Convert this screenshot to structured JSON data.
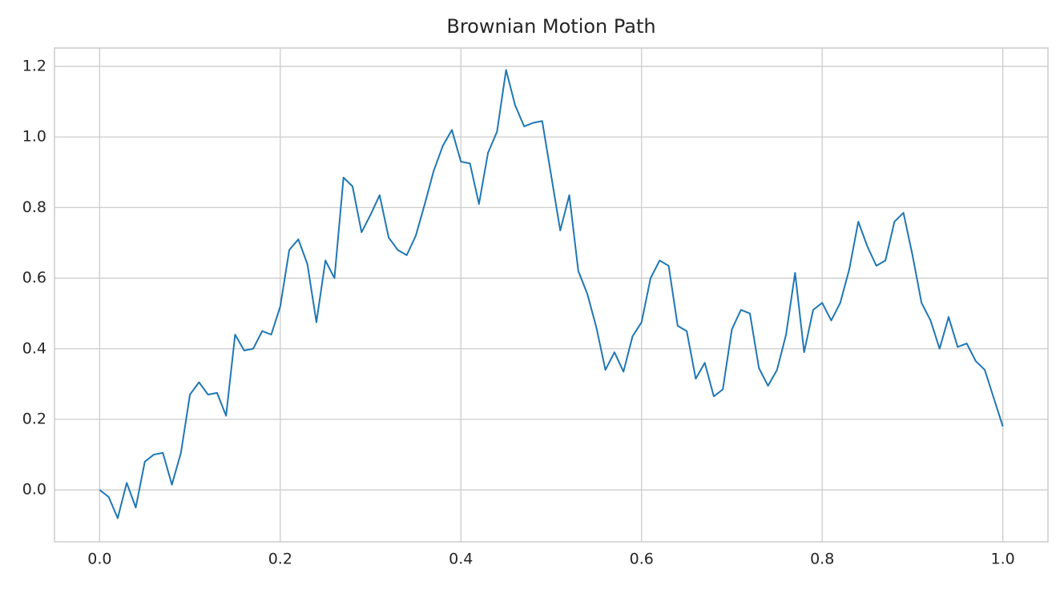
{
  "chart_data": {
    "type": "line",
    "title": "Brownian Motion Path",
    "x": [
      0,
      0.01,
      0.02,
      0.03,
      0.04,
      0.05,
      0.06,
      0.07,
      0.08,
      0.09,
      0.1,
      0.11,
      0.12,
      0.13,
      0.14,
      0.15,
      0.16,
      0.17,
      0.18,
      0.19,
      0.2,
      0.21,
      0.22,
      0.23,
      0.24,
      0.25,
      0.26,
      0.27,
      0.28,
      0.29,
      0.3,
      0.31,
      0.32,
      0.33,
      0.34,
      0.35,
      0.36,
      0.37,
      0.38,
      0.39,
      0.4,
      0.41,
      0.42,
      0.43,
      0.44,
      0.45,
      0.46,
      0.47,
      0.48,
      0.49,
      0.5,
      0.51,
      0.52,
      0.53,
      0.54,
      0.55,
      0.56,
      0.57,
      0.58,
      0.59,
      0.6,
      0.61,
      0.62,
      0.63,
      0.64,
      0.65,
      0.66,
      0.67,
      0.68,
      0.69,
      0.7,
      0.71,
      0.72,
      0.73,
      0.74,
      0.75,
      0.76,
      0.77,
      0.78,
      0.79,
      0.8,
      0.81,
      0.82,
      0.83,
      0.84,
      0.85,
      0.86,
      0.87,
      0.88,
      0.89,
      0.9,
      0.91,
      0.92,
      0.93,
      0.94,
      0.95,
      0.96,
      0.97,
      0.98,
      0.99,
      1
    ],
    "series": [
      {
        "color": "#1f77b4",
        "values": [
          0,
          -0.02,
          -0.08,
          0.02,
          -0.05,
          0.08,
          0.1,
          0.105,
          0.015,
          0.105,
          0.27,
          0.305,
          0.27,
          0.275,
          0.21,
          0.44,
          0.395,
          0.4,
          0.45,
          0.44,
          0.52,
          0.68,
          0.71,
          0.64,
          0.475,
          0.65,
          0.6,
          0.885,
          0.86,
          0.73,
          0.78,
          0.835,
          0.715,
          0.68,
          0.665,
          0.72,
          0.81,
          0.905,
          0.975,
          1.02,
          0.93,
          0.925,
          0.81,
          0.955,
          1.015,
          1.19,
          1.09,
          1.03,
          1.04,
          1.045,
          0.89,
          0.735,
          0.835,
          0.62,
          0.555,
          0.46,
          0.34,
          0.39,
          0.335,
          0.435,
          0.475,
          0.6,
          0.65,
          0.635,
          0.465,
          0.45,
          0.315,
          0.36,
          0.265,
          0.285,
          0.455,
          0.51,
          0.5,
          0.345,
          0.295,
          0.34,
          0.44,
          0.615,
          0.39,
          0.51,
          0.53,
          0.48,
          0.53,
          0.625,
          0.76,
          0.69,
          0.635,
          0.65,
          0.76,
          0.785,
          0.665,
          0.53,
          0.48,
          0.4,
          0.49,
          0.405,
          0.415,
          0.365,
          0.34,
          0.26,
          0.18
        ]
      }
    ],
    "xlim": [
      -0.05,
      1.05
    ],
    "ylim": [
      -0.147,
      1.252
    ],
    "xticks": [
      {
        "value": 0,
        "label": "0.0"
      },
      0.2,
      0.4,
      0.6,
      0.8,
      {
        "value": 1,
        "label": "1.0"
      }
    ],
    "yticks": [
      {
        "value": 0,
        "label": "0.0"
      },
      0.2,
      0.4,
      0.6,
      0.8,
      {
        "value": 1,
        "label": "1.0"
      },
      1.2
    ],
    "grid": true
  }
}
